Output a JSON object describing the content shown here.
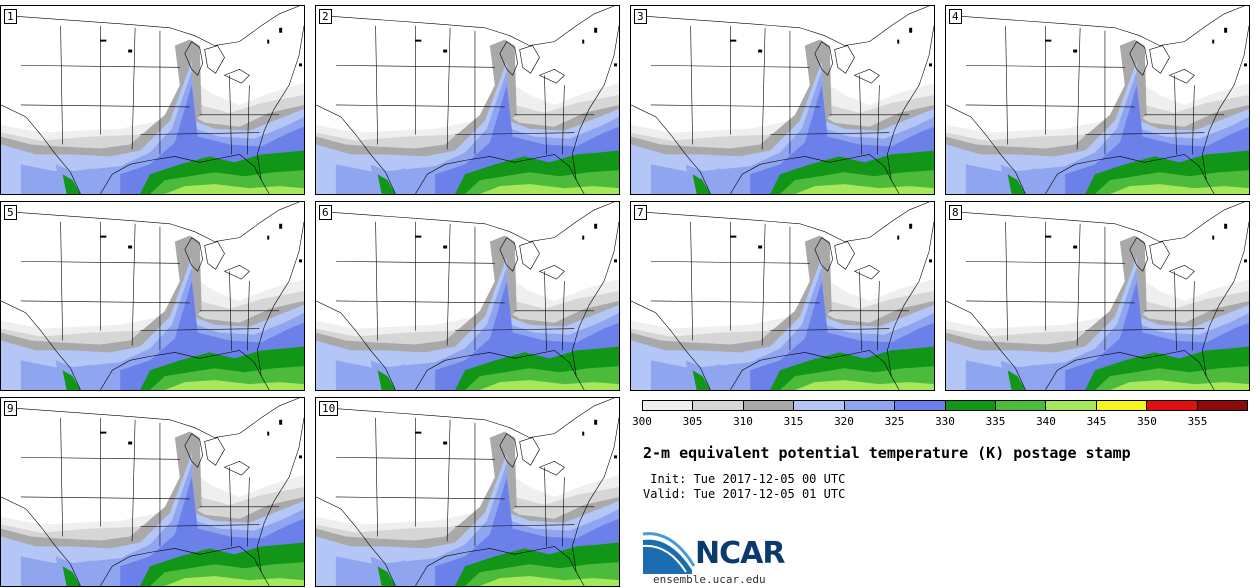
{
  "panels": [
    {
      "label": "1"
    },
    {
      "label": "2"
    },
    {
      "label": "3"
    },
    {
      "label": "4"
    },
    {
      "label": "5"
    },
    {
      "label": "6"
    },
    {
      "label": "7"
    },
    {
      "label": "8"
    },
    {
      "label": "9"
    },
    {
      "label": "10"
    }
  ],
  "colorbar": {
    "levels": [
      "300",
      "305",
      "310",
      "315",
      "320",
      "325",
      "330",
      "335",
      "340",
      "345",
      "350",
      "355"
    ],
    "colors": [
      "#efefef",
      "#d6d6d6",
      "#a9a9a9",
      "#b4c6f5",
      "#8fa5f0",
      "#6b80e8",
      "#129618",
      "#4cbb3c",
      "#a5e85c",
      "#f5f522",
      "#e01010",
      "#8b0a0a"
    ]
  },
  "map_colors": {
    "background": "#ffffff",
    "land_cool": "#efefef",
    "land_light": "#d6d6d6",
    "land_mid": "#a9a9a9",
    "blue_light": "#b4c6f5",
    "blue_mid": "#8fa5f0",
    "blue_deep": "#6b80e8",
    "green_dark": "#129618",
    "green_mid": "#4cbb3c",
    "green_light": "#a5e85c"
  },
  "title": "2-m equivalent potential temperature (K) postage stamp",
  "init": " Init: Tue 2017-12-05 00 UTC",
  "valid": "Valid: Tue 2017-12-05 01 UTC",
  "logo": {
    "name": "NCAR",
    "url": "ensemble.ucar.edu"
  }
}
